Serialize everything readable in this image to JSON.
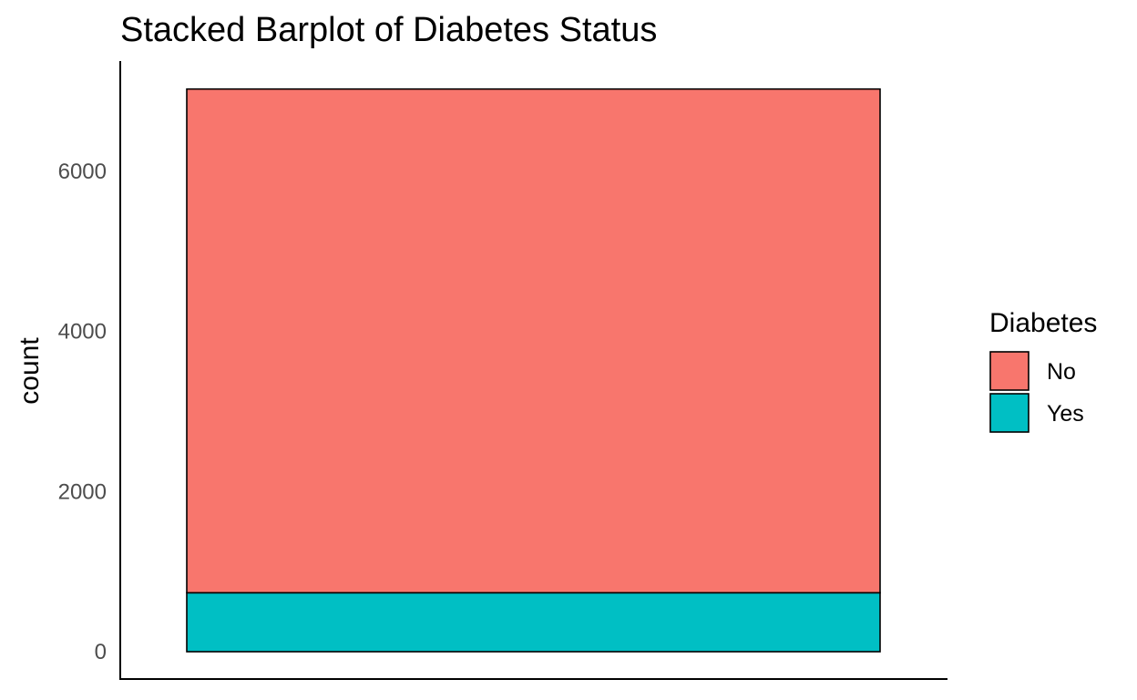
{
  "chart_data": {
    "type": "bar",
    "stacked": true,
    "title": "Stacked Barplot of Diabetes Status",
    "xlabel": "",
    "ylabel": "count",
    "categories": [
      ""
    ],
    "series": [
      {
        "name": "Yes",
        "values": [
          736
        ],
        "color": "#00BFC4"
      },
      {
        "name": "No",
        "values": [
          6291
        ],
        "color": "#F8766D"
      }
    ],
    "total": 7027,
    "ylim": [
      0,
      7027
    ],
    "yticks": [
      0,
      2000,
      4000,
      6000
    ],
    "ytick_labels": [
      "0",
      "2000",
      "4000",
      "6000"
    ],
    "grid": false,
    "legend": {
      "title": "Diabetes",
      "position": "right",
      "entries": [
        {
          "label": "No",
          "color": "#F8766D"
        },
        {
          "label": "Yes",
          "color": "#00BFC4"
        }
      ]
    }
  }
}
